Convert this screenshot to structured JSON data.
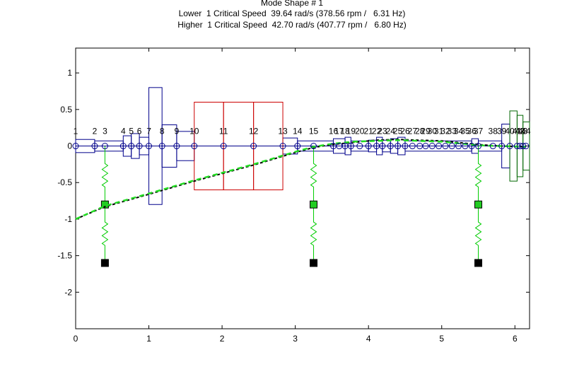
{
  "title_lines": [
    "Mode Shape # 1",
    "Lower  1 Critical Speed  39.64 rad/s (378.56 rpm /   6.31 Hz)",
    "Higher  1 Critical Speed  42.70 rad/s (407.77 rpm /   6.80 Hz)"
  ],
  "chart_data": {
    "type": "line",
    "xlim": [
      0,
      6.2
    ],
    "ylim": [
      -2.5,
      1.34
    ],
    "x_ticks": [
      0,
      1,
      2,
      3,
      4,
      5,
      6
    ],
    "y_ticks": [
      -2,
      -1.5,
      -1,
      -0.5,
      0,
      0.5,
      1
    ],
    "x_tick_labels": [
      "0",
      "1",
      "2",
      "3",
      "4",
      "5",
      "6"
    ],
    "y_tick_labels": [
      "-2",
      "-1.5",
      "-1",
      "-0.5",
      "0",
      "0.5",
      "1"
    ],
    "grid": false,
    "colors": {
      "shaft": "#00008b",
      "disk": "#cc0000",
      "bearing": "#00cc00",
      "mode_lower": "#000000",
      "mode_higher": "#22dd22",
      "end_element": "#006600"
    },
    "nodes": [
      {
        "label": "1",
        "x": 0.0
      },
      {
        "label": "2",
        "x": 0.26
      },
      {
        "label": "3",
        "x": 0.4
      },
      {
        "label": "4",
        "x": 0.65
      },
      {
        "label": "5",
        "x": 0.76
      },
      {
        "label": "6",
        "x": 0.87
      },
      {
        "label": "7",
        "x": 1.0
      },
      {
        "label": "8",
        "x": 1.18
      },
      {
        "label": "9",
        "x": 1.38
      },
      {
        "label": "10",
        "x": 1.62
      },
      {
        "label": "11",
        "x": 2.02
      },
      {
        "label": "12",
        "x": 2.43
      },
      {
        "label": "13",
        "x": 2.83
      },
      {
        "label": "14",
        "x": 3.03
      },
      {
        "label": "15",
        "x": 3.25
      },
      {
        "label": "16",
        "x": 3.52
      },
      {
        "label": "17",
        "x": 3.6
      },
      {
        "label": "18",
        "x": 3.68
      },
      {
        "label": "19",
        "x": 3.76
      },
      {
        "label": "20",
        "x": 3.88
      },
      {
        "label": "21",
        "x": 4.0
      },
      {
        "label": "22",
        "x": 4.11
      },
      {
        "label": "23",
        "x": 4.19
      },
      {
        "label": "24",
        "x": 4.3
      },
      {
        "label": "25",
        "x": 4.4
      },
      {
        "label": "26",
        "x": 4.5
      },
      {
        "label": "27",
        "x": 4.6
      },
      {
        "label": "28",
        "x": 4.7
      },
      {
        "label": "29",
        "x": 4.78
      },
      {
        "label": "30",
        "x": 4.87
      },
      {
        "label": "31",
        "x": 4.96
      },
      {
        "label": "32",
        "x": 5.05
      },
      {
        "label": "33",
        "x": 5.14
      },
      {
        "label": "34",
        "x": 5.23
      },
      {
        "label": "35",
        "x": 5.32
      },
      {
        "label": "36",
        "x": 5.41
      },
      {
        "label": "37",
        "x": 5.5
      },
      {
        "label": "38",
        "x": 5.7
      },
      {
        "label": "39",
        "x": 5.82
      },
      {
        "label": "40",
        "x": 5.93
      },
      {
        "label": "41",
        "x": 6.03
      },
      {
        "label": "42",
        "x": 6.07
      },
      {
        "label": "43",
        "x": 6.11
      },
      {
        "label": "44",
        "x": 6.15
      }
    ],
    "elements": [
      {
        "x1": 0.0,
        "x2": 0.26,
        "r": 0.09
      },
      {
        "x1": 0.26,
        "x2": 0.65,
        "r": 0.07
      },
      {
        "x1": 0.65,
        "x2": 0.76,
        "r": 0.14
      },
      {
        "x1": 0.76,
        "x2": 0.87,
        "r": 0.17
      },
      {
        "x1": 0.87,
        "x2": 1.0,
        "r": 0.12
      },
      {
        "x1": 1.0,
        "x2": 1.18,
        "r": 0.8
      },
      {
        "x1": 1.18,
        "x2": 1.38,
        "r": 0.29
      },
      {
        "x1": 1.38,
        "x2": 1.62,
        "r": 0.2
      },
      {
        "x1": 2.83,
        "x2": 3.03,
        "r": 0.11
      },
      {
        "x1": 3.03,
        "x2": 3.52,
        "r": 0.07
      },
      {
        "x1": 3.52,
        "x2": 3.68,
        "r": 0.1
      },
      {
        "x1": 3.68,
        "x2": 3.76,
        "r": 0.12
      },
      {
        "x1": 3.76,
        "x2": 4.0,
        "r": 0.07
      },
      {
        "x1": 4.0,
        "x2": 4.11,
        "r": 0.08
      },
      {
        "x1": 4.11,
        "x2": 4.19,
        "r": 0.12
      },
      {
        "x1": 4.19,
        "x2": 4.3,
        "r": 0.08
      },
      {
        "x1": 4.3,
        "x2": 4.4,
        "r": 0.1
      },
      {
        "x1": 4.4,
        "x2": 4.5,
        "r": 0.12
      },
      {
        "x1": 4.5,
        "x2": 5.41,
        "r": 0.07
      },
      {
        "x1": 5.41,
        "x2": 5.5,
        "r": 0.1
      },
      {
        "x1": 5.5,
        "x2": 5.82,
        "r": 0.07
      },
      {
        "x1": 5.82,
        "x2": 5.93,
        "r": 0.3
      }
    ],
    "disks": [
      {
        "x1": 1.62,
        "x2": 2.02,
        "r": 0.6
      },
      {
        "x1": 2.02,
        "x2": 2.43,
        "r": 0.6
      },
      {
        "x1": 2.43,
        "x2": 2.83,
        "r": 0.6
      }
    ],
    "end_elements": [
      {
        "x1": 5.93,
        "x2": 6.03,
        "r": 0.48
      },
      {
        "x1": 6.03,
        "x2": 6.11,
        "r": 0.42
      },
      {
        "x1": 6.11,
        "x2": 6.2,
        "r": 0.33
      }
    ],
    "bearings": [
      {
        "x": 0.4,
        "spring_top": 0.0,
        "mid": -0.8,
        "ground": -1.6
      },
      {
        "x": 3.25,
        "spring_top": 0.0,
        "mid": -0.8,
        "ground": -1.6
      },
      {
        "x": 5.5,
        "spring_top": 0.0,
        "mid": -0.8,
        "ground": -1.6
      }
    ],
    "series": [
      {
        "style": "dashed",
        "x": [
          0.0,
          0.4,
          1.0,
          1.62,
          2.43,
          3.03,
          3.25,
          3.5,
          3.8,
          4.1,
          4.4,
          4.7,
          5.0,
          5.3,
          5.5,
          5.8,
          6.15
        ],
        "y": [
          -1.0,
          -0.83,
          -0.66,
          -0.48,
          -0.26,
          -0.08,
          -0.02,
          0.02,
          0.05,
          0.08,
          0.09,
          0.08,
          0.07,
          0.04,
          0.02,
          0.0,
          -0.01
        ]
      },
      {
        "style": "dashed",
        "x": [
          0.0,
          0.4,
          1.0,
          1.62,
          2.43,
          3.03,
          3.25,
          3.5,
          3.8,
          4.1,
          4.4,
          4.7,
          5.0,
          5.3,
          5.5,
          5.8,
          6.15
        ],
        "y": [
          -1.0,
          -0.82,
          -0.65,
          -0.47,
          -0.25,
          -0.07,
          -0.01,
          0.03,
          0.06,
          0.07,
          0.08,
          0.07,
          0.06,
          0.03,
          0.01,
          0.0,
          -0.01
        ]
      }
    ]
  }
}
